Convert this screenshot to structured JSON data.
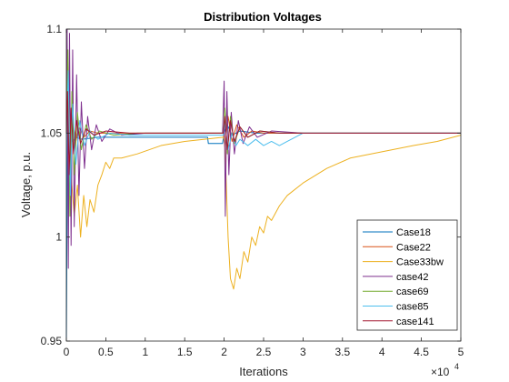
{
  "chart_data": {
    "type": "line",
    "title": "Distribution Voltages",
    "xlabel": "Iterations",
    "ylabel": "Voltage, p.u.",
    "x_exponent_label": "×10",
    "x_exponent_power": "4",
    "xlim": [
      0,
      50000
    ],
    "ylim": [
      0.95,
      1.1
    ],
    "xticks": [
      0,
      5000,
      10000,
      15000,
      20000,
      25000,
      30000,
      35000,
      40000,
      45000,
      50000
    ],
    "xtick_labels": [
      "0",
      "0.5",
      "1",
      "1.5",
      "2",
      "2.5",
      "3",
      "3.5",
      "4",
      "4.5",
      "5"
    ],
    "yticks": [
      0.95,
      1.0,
      1.05,
      1.1
    ],
    "ytick_labels": [
      "0.95",
      "1",
      "1.05",
      "1.1"
    ],
    "grid": false,
    "legend_position": "bottom-right",
    "series": [
      {
        "name": "Case18",
        "color": "#0072BD",
        "points": [
          [
            0,
            0.95
          ],
          [
            150,
            1.06
          ],
          [
            300,
            1.04
          ],
          [
            500,
            1.052
          ],
          [
            800,
            1.046
          ],
          [
            1200,
            1.048
          ],
          [
            2000,
            1.047
          ],
          [
            4000,
            1.048
          ],
          [
            8000,
            1.048
          ],
          [
            12000,
            1.048
          ],
          [
            17900,
            1.048
          ],
          [
            18000,
            1.045
          ],
          [
            19800,
            1.045
          ],
          [
            20000,
            1.05
          ],
          [
            20400,
            1.054
          ],
          [
            21000,
            1.049
          ],
          [
            22000,
            1.051
          ],
          [
            24000,
            1.05
          ],
          [
            26000,
            1.05
          ],
          [
            30000,
            1.05
          ],
          [
            40000,
            1.05
          ],
          [
            50000,
            1.05
          ]
        ]
      },
      {
        "name": "Case22",
        "color": "#D95319",
        "points": [
          [
            0,
            1.05
          ],
          [
            200,
            1.065
          ],
          [
            500,
            1.043
          ],
          [
            800,
            1.056
          ],
          [
            1200,
            1.046
          ],
          [
            1600,
            1.053
          ],
          [
            2200,
            1.048
          ],
          [
            3000,
            1.051
          ],
          [
            4000,
            1.05
          ],
          [
            8000,
            1.05
          ],
          [
            19900,
            1.05
          ],
          [
            20100,
            1.043
          ],
          [
            20500,
            1.058
          ],
          [
            21000,
            1.046
          ],
          [
            21600,
            1.054
          ],
          [
            22500,
            1.048
          ],
          [
            23500,
            1.051
          ],
          [
            25000,
            1.05
          ],
          [
            50000,
            1.05
          ]
        ]
      },
      {
        "name": "Case33bw",
        "color": "#EDB120",
        "points": [
          [
            0,
            1.05
          ],
          [
            300,
            1.08
          ],
          [
            600,
            1.03
          ],
          [
            1000,
            1.01
          ],
          [
            1400,
            1.025
          ],
          [
            1800,
            1.0
          ],
          [
            2200,
            1.02
          ],
          [
            2600,
            1.005
          ],
          [
            3000,
            1.018
          ],
          [
            3500,
            1.012
          ],
          [
            4000,
            1.025
          ],
          [
            4500,
            1.03
          ],
          [
            5000,
            1.036
          ],
          [
            5500,
            1.033
          ],
          [
            6000,
            1.038
          ],
          [
            7000,
            1.038
          ],
          [
            9000,
            1.04
          ],
          [
            12000,
            1.044
          ],
          [
            15000,
            1.046
          ],
          [
            19900,
            1.048
          ],
          [
            20100,
            1.045
          ],
          [
            20500,
            1.0
          ],
          [
            20800,
            0.98
          ],
          [
            21200,
            0.975
          ],
          [
            21600,
            0.985
          ],
          [
            22000,
            0.98
          ],
          [
            22500,
            0.993
          ],
          [
            23000,
            0.988
          ],
          [
            23500,
            1.0
          ],
          [
            24000,
            0.996
          ],
          [
            24500,
            1.005
          ],
          [
            25000,
            1.002
          ],
          [
            25500,
            1.01
          ],
          [
            26000,
            1.008
          ],
          [
            27000,
            1.015
          ],
          [
            28000,
            1.02
          ],
          [
            30000,
            1.026
          ],
          [
            33000,
            1.033
          ],
          [
            36000,
            1.038
          ],
          [
            40000,
            1.041
          ],
          [
            44000,
            1.044
          ],
          [
            47000,
            1.046
          ],
          [
            50000,
            1.049
          ]
        ]
      },
      {
        "name": "case42",
        "color": "#7E2F8E",
        "points": [
          [
            0,
            1.05
          ],
          [
            100,
            1.1
          ],
          [
            250,
            0.985
          ],
          [
            400,
            1.098
          ],
          [
            600,
            0.996
          ],
          [
            800,
            1.09
          ],
          [
            1000,
            1.005
          ],
          [
            1300,
            1.078
          ],
          [
            1600,
            1.02
          ],
          [
            1900,
            1.065
          ],
          [
            2300,
            1.033
          ],
          [
            2700,
            1.058
          ],
          [
            3200,
            1.042
          ],
          [
            3800,
            1.054
          ],
          [
            4500,
            1.046
          ],
          [
            5500,
            1.052
          ],
          [
            7000,
            1.049
          ],
          [
            10000,
            1.05
          ],
          [
            19800,
            1.05
          ],
          [
            20000,
            1.075
          ],
          [
            20150,
            1.01
          ],
          [
            20350,
            1.07
          ],
          [
            20600,
            1.03
          ],
          [
            20900,
            1.06
          ],
          [
            21300,
            1.04
          ],
          [
            21800,
            1.056
          ],
          [
            22400,
            1.045
          ],
          [
            23200,
            1.053
          ],
          [
            24200,
            1.048
          ],
          [
            26000,
            1.051
          ],
          [
            30000,
            1.05
          ],
          [
            50000,
            1.05
          ]
        ]
      },
      {
        "name": "case69",
        "color": "#77AC30",
        "points": [
          [
            0,
            1.05
          ],
          [
            200,
            1.09
          ],
          [
            450,
            1.01
          ],
          [
            700,
            1.07
          ],
          [
            1000,
            1.03
          ],
          [
            1400,
            1.06
          ],
          [
            1900,
            1.042
          ],
          [
            2500,
            1.054
          ],
          [
            3200,
            1.047
          ],
          [
            4200,
            1.051
          ],
          [
            6000,
            1.049
          ],
          [
            9000,
            1.05
          ],
          [
            19900,
            1.05
          ],
          [
            20100,
            1.062
          ],
          [
            20400,
            1.04
          ],
          [
            20800,
            1.058
          ],
          [
            21300,
            1.045
          ],
          [
            22000,
            1.053
          ],
          [
            23000,
            1.048
          ],
          [
            24500,
            1.051
          ],
          [
            27000,
            1.05
          ],
          [
            50000,
            1.05
          ]
        ]
      },
      {
        "name": "case85",
        "color": "#4DBEEE",
        "points": [
          [
            0,
            1.05
          ],
          [
            250,
            1.08
          ],
          [
            500,
            1.02
          ],
          [
            800,
            1.064
          ],
          [
            1200,
            1.035
          ],
          [
            1700,
            1.056
          ],
          [
            2300,
            1.044
          ],
          [
            3000,
            1.051
          ],
          [
            4000,
            1.047
          ],
          [
            5500,
            1.05
          ],
          [
            8000,
            1.049
          ],
          [
            19900,
            1.049
          ],
          [
            20100,
            1.055
          ],
          [
            20500,
            1.042
          ],
          [
            21000,
            1.05
          ],
          [
            21500,
            1.044
          ],
          [
            22000,
            1.047
          ],
          [
            23000,
            1.044
          ],
          [
            24000,
            1.047
          ],
          [
            25000,
            1.044
          ],
          [
            26000,
            1.046
          ],
          [
            27000,
            1.044
          ],
          [
            28000,
            1.046
          ],
          [
            29000,
            1.048
          ],
          [
            30000,
            1.05
          ],
          [
            40000,
            1.05
          ],
          [
            50000,
            1.05
          ]
        ]
      },
      {
        "name": "case141",
        "color": "#A2142F",
        "points": [
          [
            0,
            1.05
          ],
          [
            150,
            1.07
          ],
          [
            350,
            1.03
          ],
          [
            600,
            1.062
          ],
          [
            900,
            1.04
          ],
          [
            1300,
            1.056
          ],
          [
            1800,
            1.045
          ],
          [
            2500,
            1.052
          ],
          [
            3500,
            1.049
          ],
          [
            5000,
            1.051
          ],
          [
            8000,
            1.05
          ],
          [
            19900,
            1.05
          ],
          [
            20100,
            1.058
          ],
          [
            20400,
            1.042
          ],
          [
            20800,
            1.056
          ],
          [
            21300,
            1.046
          ],
          [
            22000,
            1.053
          ],
          [
            23000,
            1.048
          ],
          [
            24500,
            1.051
          ],
          [
            27000,
            1.05
          ],
          [
            50000,
            1.05
          ]
        ]
      }
    ]
  }
}
